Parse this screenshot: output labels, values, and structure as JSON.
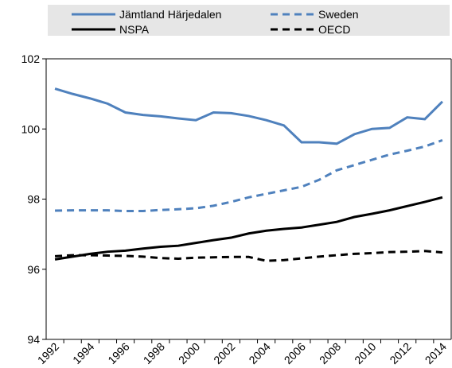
{
  "chart_data": {
    "type": "line",
    "categories": [
      "1992",
      null,
      "1994",
      null,
      "1996",
      null,
      "1998",
      null,
      "2000",
      null,
      "2002",
      null,
      "2004",
      null,
      "2006",
      null,
      "2008",
      null,
      "2010",
      null,
      "2012",
      null,
      "2014"
    ],
    "series": [
      {
        "name": "Jämtland Härjedalen",
        "color": "#4f81bd",
        "style": "solid",
        "values": [
          101.15,
          101.0,
          100.87,
          100.72,
          100.47,
          100.4,
          100.36,
          100.3,
          100.25,
          100.47,
          100.45,
          100.37,
          100.25,
          100.1,
          99.62,
          99.62,
          99.58,
          99.85,
          100.0,
          100.03,
          100.33,
          100.28,
          100.78
        ]
      },
      {
        "name": "Sweden",
        "color": "#4f81bd",
        "style": "dashed",
        "values": [
          97.67,
          97.68,
          97.68,
          97.68,
          97.66,
          97.66,
          97.69,
          97.71,
          97.74,
          97.81,
          97.92,
          98.05,
          98.15,
          98.25,
          98.35,
          98.55,
          98.82,
          98.97,
          99.12,
          99.27,
          99.38,
          99.5,
          99.68
        ]
      },
      {
        "name": "NSPA",
        "color": "#000000",
        "style": "solid",
        "values": [
          96.28,
          96.36,
          96.44,
          96.5,
          96.53,
          96.59,
          96.64,
          96.67,
          96.75,
          96.83,
          96.9,
          97.02,
          97.1,
          97.15,
          97.19,
          97.27,
          97.35,
          97.49,
          97.58,
          97.68,
          97.8,
          97.92,
          98.05
        ]
      },
      {
        "name": "OECD",
        "color": "#000000",
        "style": "dashed",
        "values": [
          96.37,
          96.4,
          96.4,
          96.39,
          96.38,
          96.36,
          96.32,
          96.3,
          96.33,
          96.34,
          96.35,
          96.35,
          96.24,
          96.26,
          96.31,
          96.36,
          96.4,
          96.44,
          96.46,
          96.49,
          96.5,
          96.52,
          96.48
        ]
      }
    ],
    "ylim": [
      94,
      102
    ],
    "yticks": [
      94,
      96,
      98,
      100,
      102
    ]
  }
}
